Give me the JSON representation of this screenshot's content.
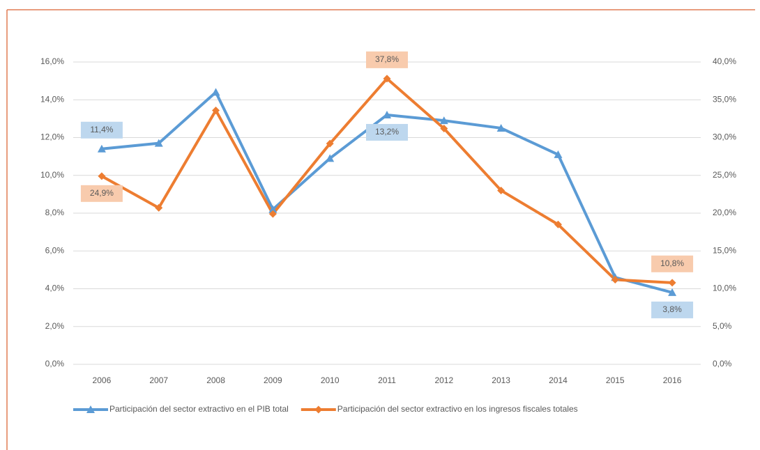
{
  "chart_data": {
    "type": "line",
    "categories": [
      "2006",
      "2007",
      "2008",
      "2009",
      "2010",
      "2011",
      "2012",
      "2013",
      "2014",
      "2015",
      "2016"
    ],
    "series": [
      {
        "name": "Participación del sector extractivo en el PIB total",
        "color": "#5b9bd5",
        "marker": "triangle",
        "values": [
          11.4,
          11.7,
          14.4,
          8.2,
          10.9,
          13.2,
          12.9,
          12.5,
          11.1,
          4.6,
          3.8
        ],
        "value_labels": [
          "11,4%",
          null,
          null,
          null,
          null,
          "13,2%",
          null,
          null,
          null,
          null,
          "3,8%"
        ]
      },
      {
        "name": "Participación del sector extractivo en los ingresos fiscales totales",
        "color": "#ed7d31",
        "marker": "diamond",
        "axis": "y2",
        "values": [
          24.9,
          20.7,
          33.6,
          19.9,
          29.2,
          37.8,
          31.2,
          23.0,
          18.5,
          11.2,
          10.8
        ],
        "value_labels": [
          "24,9%",
          null,
          null,
          null,
          null,
          "37,8%",
          null,
          null,
          null,
          null,
          "10,8%"
        ]
      }
    ],
    "ylim": [
      0,
      16
    ],
    "yticks": [
      {
        "value": 0,
        "label": "0,0%"
      },
      {
        "value": 2,
        "label": "2,0%"
      },
      {
        "value": 4,
        "label": "4,0%"
      },
      {
        "value": 6,
        "label": "6,0%"
      },
      {
        "value": 8,
        "label": "8,0%"
      },
      {
        "value": 10,
        "label": "10,0%"
      },
      {
        "value": 12,
        "label": "12,0%"
      },
      {
        "value": 14,
        "label": "14,0%"
      },
      {
        "value": 16,
        "label": "16,0%"
      }
    ],
    "y2lim": [
      0,
      40
    ],
    "y2ticks": [
      {
        "value": 0,
        "label": "0,0%"
      },
      {
        "value": 5,
        "label": "5,0%"
      },
      {
        "value": 10,
        "label": "10,0%"
      },
      {
        "value": 15,
        "label": "15,0%"
      },
      {
        "value": 20,
        "label": "20,0%"
      },
      {
        "value": 25,
        "label": "25,0%"
      },
      {
        "value": 30,
        "label": "30,0%"
      },
      {
        "value": 35,
        "label": "35,0%"
      },
      {
        "value": 40,
        "label": "40,0%"
      }
    ],
    "grid": true,
    "legend": "bottom"
  }
}
